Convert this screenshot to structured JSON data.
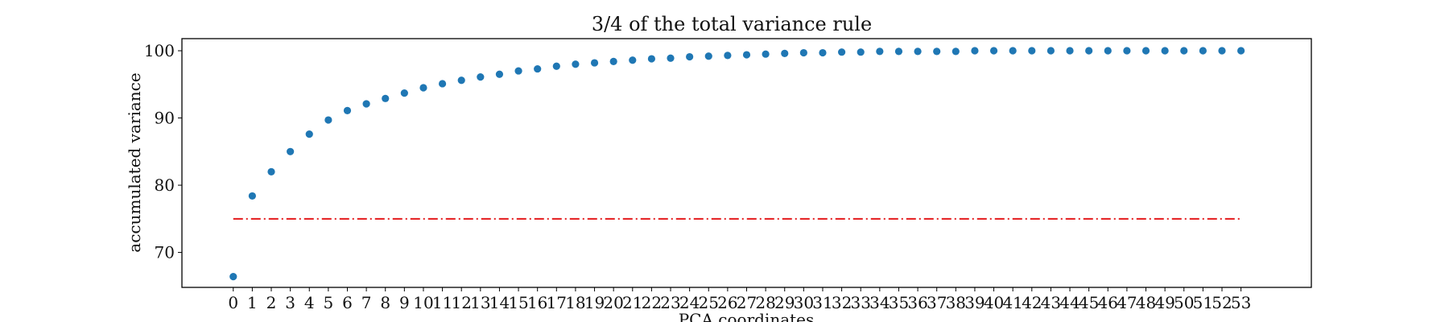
{
  "chart_data": {
    "type": "scatter",
    "title": "3/4 of the total variance rule",
    "xlabel": "PCA coordinates",
    "ylabel": "accumulated variance",
    "xlim": [
      -2.7,
      56.7
    ],
    "ylim": [
      64.8,
      101.8
    ],
    "x_ticks": [
      0,
      1,
      2,
      3,
      4,
      5,
      6,
      7,
      8,
      9,
      10,
      11,
      12,
      13,
      14,
      15,
      16,
      17,
      18,
      19,
      20,
      21,
      22,
      23,
      24,
      25,
      26,
      27,
      28,
      29,
      30,
      31,
      32,
      33,
      34,
      35,
      36,
      37,
      38,
      39,
      40,
      41,
      42,
      43,
      44,
      45,
      46,
      47,
      48,
      49,
      50,
      51,
      52,
      53
    ],
    "y_ticks": [
      70,
      80,
      90,
      100
    ],
    "grid": false,
    "series": [
      {
        "color": "#1f77b4",
        "x": [
          0,
          1,
          2,
          3,
          4,
          5,
          6,
          7,
          8,
          9,
          10,
          11,
          12,
          13,
          14,
          15,
          16,
          17,
          18,
          19,
          20,
          21,
          22,
          23,
          24,
          25,
          26,
          27,
          28,
          29,
          30,
          31,
          32,
          33,
          34,
          35,
          36,
          37,
          38,
          39,
          40,
          41,
          42,
          43,
          44,
          45,
          46,
          47,
          48,
          49,
          50,
          51,
          52,
          53
        ],
        "y": [
          66.4,
          78.4,
          82.0,
          85.0,
          87.6,
          89.7,
          91.1,
          92.1,
          92.9,
          93.7,
          94.5,
          95.1,
          95.6,
          96.1,
          96.5,
          97.0,
          97.3,
          97.7,
          98.0,
          98.2,
          98.4,
          98.6,
          98.8,
          98.9,
          99.1,
          99.2,
          99.3,
          99.4,
          99.5,
          99.6,
          99.7,
          99.7,
          99.8,
          99.8,
          99.9,
          99.9,
          99.9,
          99.9,
          99.9,
          100.0,
          100.0,
          100.0,
          100.0,
          100.0,
          100.0,
          100.0,
          100.0,
          100.0,
          100.0,
          100.0,
          100.0,
          100.0,
          100.0,
          100.0
        ]
      }
    ],
    "threshold_line": {
      "y": 75,
      "x_range": [
        0,
        53
      ],
      "color": "#e41a1c",
      "style": "dash-dot"
    }
  }
}
